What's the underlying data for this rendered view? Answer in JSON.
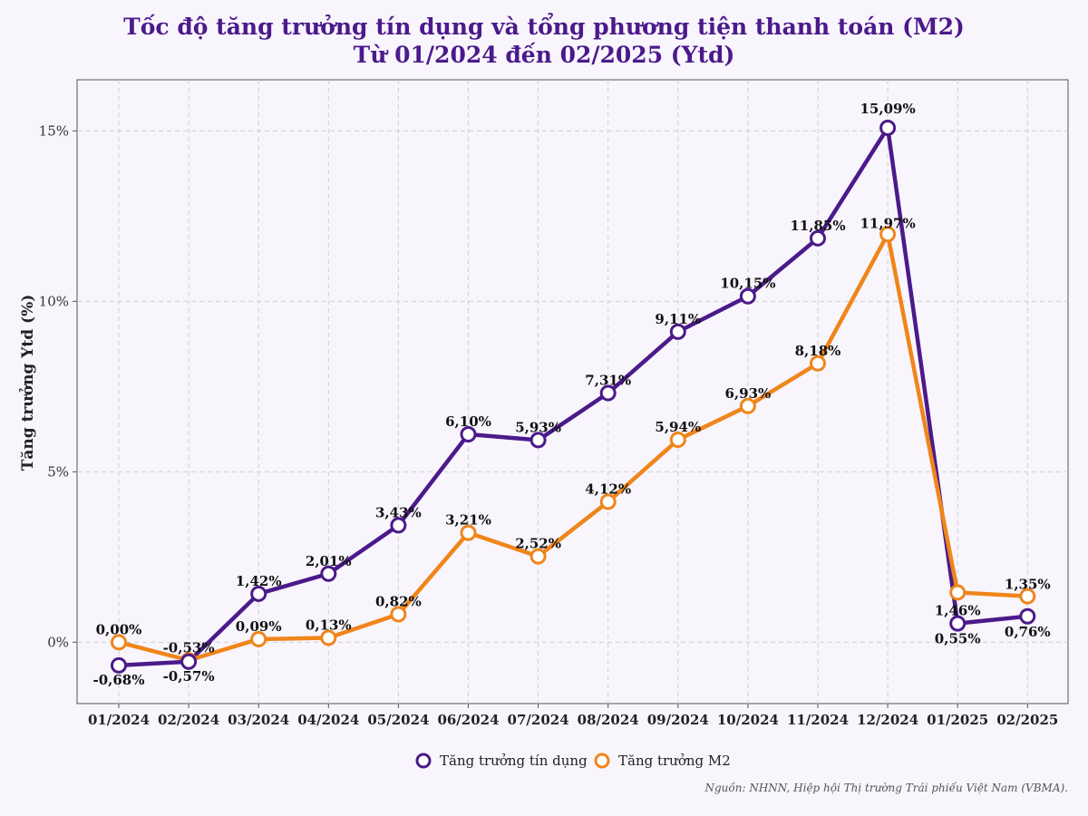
{
  "chart_data": {
    "type": "line",
    "title_line1": "Tốc độ tăng trưởng tín dụng và tổng phương tiện thanh toán (M2)",
    "title_line2": "Từ 01/2024 đến 02/2025 (Ytd)",
    "ylabel": "Tăng trưởng Ytd (%)",
    "xlabel": "",
    "categories": [
      "01/2024",
      "02/2024",
      "03/2024",
      "04/2024",
      "05/2024",
      "06/2024",
      "07/2024",
      "08/2024",
      "09/2024",
      "10/2024",
      "11/2024",
      "12/2024",
      "01/2025",
      "02/2025"
    ],
    "ylim": [
      -1.8,
      16.5
    ],
    "yticks": [
      0,
      5,
      10,
      15
    ],
    "ytick_labels": [
      "0%",
      "5%",
      "10%",
      "15%"
    ],
    "grid": true,
    "legend_position": "bottom-center",
    "series": [
      {
        "name": "Tăng trưởng tín dụng",
        "color": "#4b1a8a",
        "values": [
          -0.68,
          -0.57,
          1.42,
          2.01,
          3.43,
          6.1,
          5.93,
          7.31,
          9.11,
          10.15,
          11.85,
          15.09,
          0.55,
          0.76
        ],
        "labels": [
          "-0,68%",
          "-0,57%",
          "1,42%",
          "2,01%",
          "3,43%",
          "6,10%",
          "5,93%",
          "7,31%",
          "9,11%",
          "10,15%",
          "11,85%",
          "15,09%",
          "0,55%",
          "0,76%"
        ]
      },
      {
        "name": "Tăng trưởng M2",
        "color": "#f0851a",
        "values": [
          0.0,
          -0.53,
          0.09,
          0.13,
          0.82,
          3.21,
          2.52,
          4.12,
          5.94,
          6.93,
          8.18,
          11.97,
          1.46,
          1.35
        ],
        "labels": [
          "0,00%",
          "-0,53%",
          "0,09%",
          "0,13%",
          "0,82%",
          "3,21%",
          "2,52%",
          "4,12%",
          "5,94%",
          "6,93%",
          "8,18%",
          "11,97%",
          "1,46%",
          "1,35%"
        ]
      }
    ]
  },
  "source_note": "Nguồn: NHNN, Hiệp hội Thị trường Trái phiếu Việt Nam (VBMA)."
}
